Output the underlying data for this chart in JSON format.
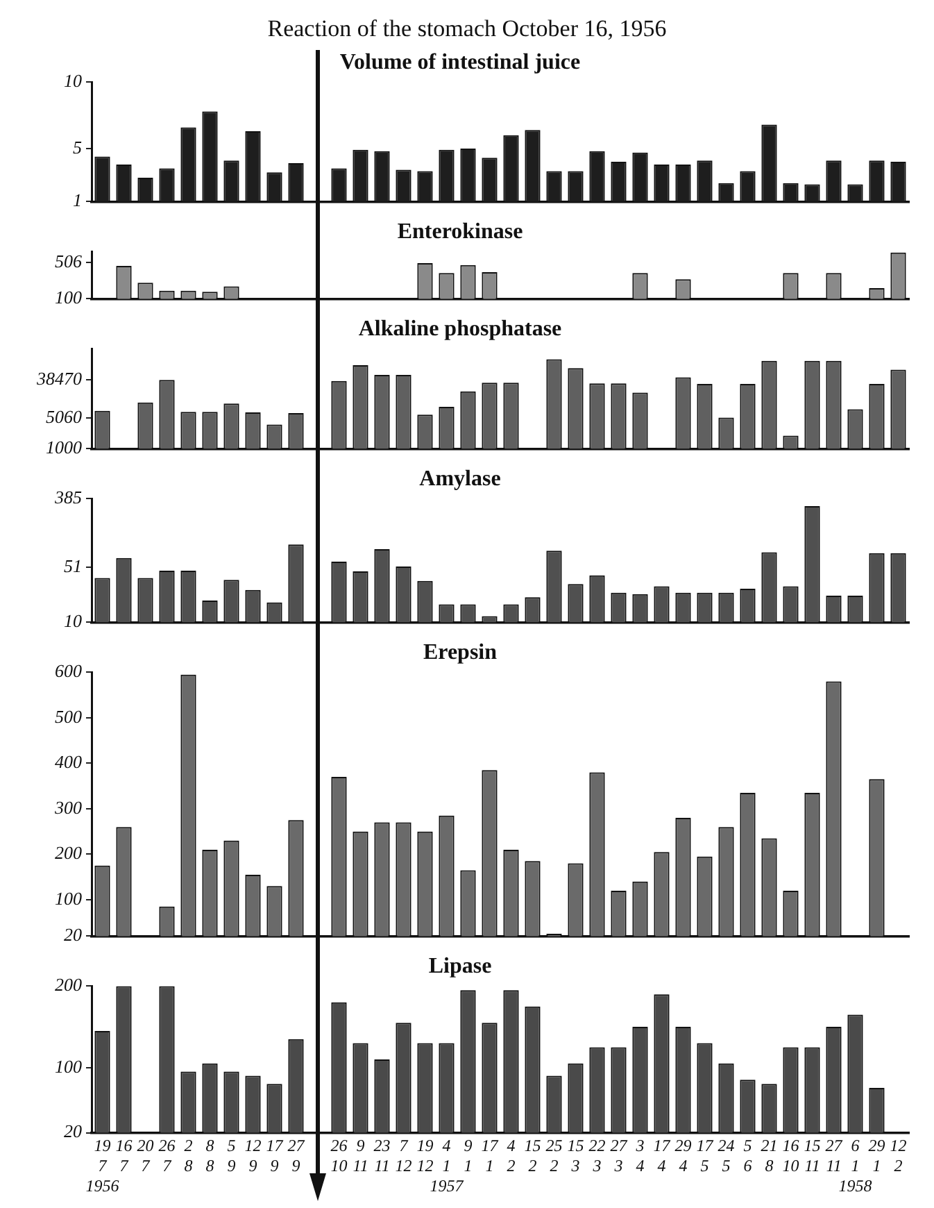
{
  "chart_data": [
    {
      "type": "bar",
      "title": "Volume of intestinal juice",
      "annotations": [
        "Reaction of the stomach October 16, 1956"
      ],
      "tick_labels": "y",
      "color": "#1e1e1e",
      "values": [
        4.4,
        3.8,
        2.8,
        3.5,
        6.6,
        7.8,
        4.1,
        6.3,
        3.2,
        3.9,
        null,
        3.5,
        4.9,
        4.8,
        3.4,
        3.3,
        4.9,
        5.0,
        4.3,
        6.0,
        6.4,
        3.3,
        3.3,
        4.8,
        4.0,
        4.7,
        3.8,
        3.8,
        4.1,
        2.4,
        3.3,
        6.8,
        2.4,
        2.3,
        4.1,
        2.3,
        4.1,
        4.0
      ],
      "ylim": [
        1,
        10
      ],
      "yticks": [
        1,
        5,
        10
      ]
    },
    {
      "type": "bar",
      "title": "Enterokinase",
      "tick_labels": "y",
      "color": "#8a8a8a",
      "values": [
        null,
        470,
        280,
        190,
        190,
        180,
        240,
        null,
        null,
        null,
        null,
        null,
        null,
        null,
        null,
        500,
        390,
        480,
        400,
        null,
        null,
        null,
        null,
        null,
        null,
        390,
        null,
        320,
        null,
        null,
        null,
        null,
        390,
        null,
        390,
        null,
        220,
        620
      ],
      "ylim": [
        100,
        630
      ],
      "yticks": [
        100,
        506
      ]
    },
    {
      "type": "bar",
      "title": "Alkaline phosphatase",
      "tick_labels": "y",
      "color": "#606060",
      "log": "y",
      "values": [
        7500,
        null,
        11600,
        38500,
        7100,
        7100,
        11000,
        6900,
        3600,
        6600,
        null,
        36500,
        84000,
        50000,
        50000,
        6100,
        9200,
        21000,
        33000,
        33000,
        null,
        115000,
        72000,
        32000,
        32000,
        19600,
        null,
        44000,
        31000,
        5200,
        31000,
        106000,
        2000,
        106000,
        106000,
        8100,
        31000,
        66000
      ],
      "ylim": [
        1000,
        200000
      ],
      "yticks": [
        1000,
        5060,
        38470
      ]
    },
    {
      "type": "bar",
      "title": "Amylase",
      "tick_labels": "y",
      "color": "#505050",
      "log": "y",
      "values": [
        37,
        67,
        37,
        46,
        46,
        19,
        35,
        26,
        18,
        100,
        null,
        60,
        45,
        87,
        52,
        34,
        17,
        17,
        12,
        17,
        21,
        83,
        31,
        40,
        24,
        23,
        29,
        24,
        24,
        24,
        27,
        79,
        29,
        310,
        22,
        22,
        77,
        77
      ],
      "ylim": [
        10,
        385
      ],
      "yticks": [
        10,
        51,
        385
      ]
    },
    {
      "type": "bar",
      "title": "Erepsin",
      "tick_labels": "y",
      "color": "#6a6a6a",
      "values": [
        175,
        260,
        null,
        85,
        595,
        210,
        230,
        155,
        130,
        275,
        null,
        370,
        250,
        270,
        270,
        250,
        285,
        165,
        385,
        210,
        185,
        25,
        180,
        380,
        120,
        140,
        205,
        280,
        195,
        260,
        335,
        235,
        120,
        335,
        580,
        null,
        365,
        null
      ],
      "ylim": [
        20,
        600
      ],
      "yticks": [
        20,
        100,
        200,
        300,
        400,
        500,
        600
      ]
    },
    {
      "type": "bar",
      "title": "Lipase",
      "color": "#4a4a4a",
      "categories": [
        "19\n7\n1956",
        "16\n7",
        "20\n7",
        "26\n7",
        "2\n8",
        "8\n8",
        "5\n9",
        "12\n9",
        "17\n9",
        "27\n9",
        null,
        "26\n10",
        "9\n11",
        "23\n11",
        "7\n12",
        "19\n12",
        "4\n1\n1957",
        "9\n1",
        "17\n1",
        "4\n2",
        "15\n2",
        "25\n2",
        "15\n3",
        "22\n3",
        "27\n3",
        "3\n4",
        "17\n4",
        "29\n4",
        "17\n5",
        "24\n5",
        "5\n6",
        "21\n8",
        "16\n10",
        "15\n11",
        "27\n11",
        "6\n1\n1958",
        "29\n1",
        "12\n2"
      ],
      "values": [
        145,
        200,
        null,
        200,
        95,
        105,
        95,
        90,
        80,
        135,
        null,
        180,
        130,
        110,
        155,
        130,
        130,
        195,
        155,
        195,
        175,
        90,
        105,
        125,
        125,
        150,
        190,
        150,
        130,
        105,
        85,
        80,
        125,
        125,
        150,
        165,
        75,
        null
      ],
      "ylim": [
        20,
        200
      ],
      "yticks": [
        20,
        100,
        200
      ]
    }
  ]
}
